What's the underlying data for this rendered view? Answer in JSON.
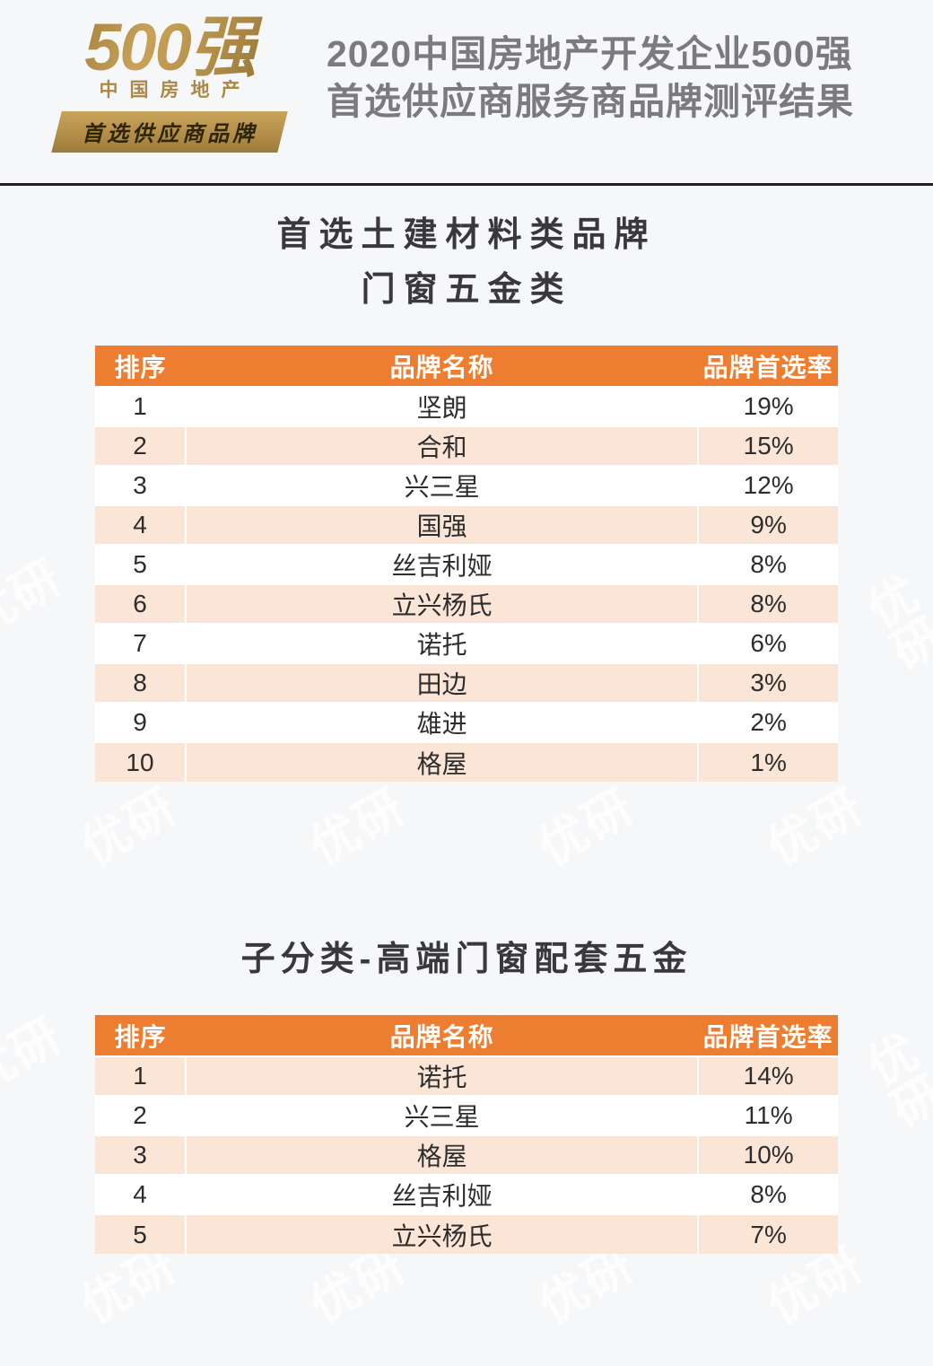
{
  "header": {
    "logo": {
      "big": "500强",
      "sub": "中国房地产",
      "banner": "首选供应商品牌"
    },
    "title_line1": "2020中国房地产开发企业500强",
    "title_line2": "首选供应商服务商品牌测评结果"
  },
  "section1": {
    "title_line1": "首选土建材料类品牌",
    "title_line2": "门窗五金类"
  },
  "section2": {
    "title": "子分类-高端门窗配套五金"
  },
  "watermark": {
    "text": "优研"
  },
  "colors": {
    "header_orange": "#ed7d31",
    "row_peach": "#fbe5d6",
    "logo_gold": "#b08c46",
    "title_gray": "#7b7b7f",
    "section_dark": "#39393c"
  },
  "table1": {
    "columns": [
      "排序",
      "品牌名称",
      "品牌首选率"
    ],
    "rows": [
      {
        "rank": "1",
        "brand": "坚朗",
        "rate": "19%"
      },
      {
        "rank": "2",
        "brand": "合和",
        "rate": "15%"
      },
      {
        "rank": "3",
        "brand": "兴三星",
        "rate": "12%"
      },
      {
        "rank": "4",
        "brand": "国强",
        "rate": "9%"
      },
      {
        "rank": "5",
        "brand": "丝吉利娅",
        "rate": "8%"
      },
      {
        "rank": "6",
        "brand": "立兴杨氏",
        "rate": "8%"
      },
      {
        "rank": "7",
        "brand": "诺托",
        "rate": "6%"
      },
      {
        "rank": "8",
        "brand": "田边",
        "rate": "3%"
      },
      {
        "rank": "9",
        "brand": "雄进",
        "rate": "2%"
      },
      {
        "rank": "10",
        "brand": "格屋",
        "rate": "1%"
      }
    ]
  },
  "table2": {
    "columns": [
      "排序",
      "品牌名称",
      "品牌首选率"
    ],
    "rows": [
      {
        "rank": "1",
        "brand": "诺托",
        "rate": "14%"
      },
      {
        "rank": "2",
        "brand": "兴三星",
        "rate": "11%"
      },
      {
        "rank": "3",
        "brand": "格屋",
        "rate": "10%"
      },
      {
        "rank": "4",
        "brand": "丝吉利娅",
        "rate": "8%"
      },
      {
        "rank": "5",
        "brand": "立兴杨氏",
        "rate": "7%"
      }
    ]
  }
}
